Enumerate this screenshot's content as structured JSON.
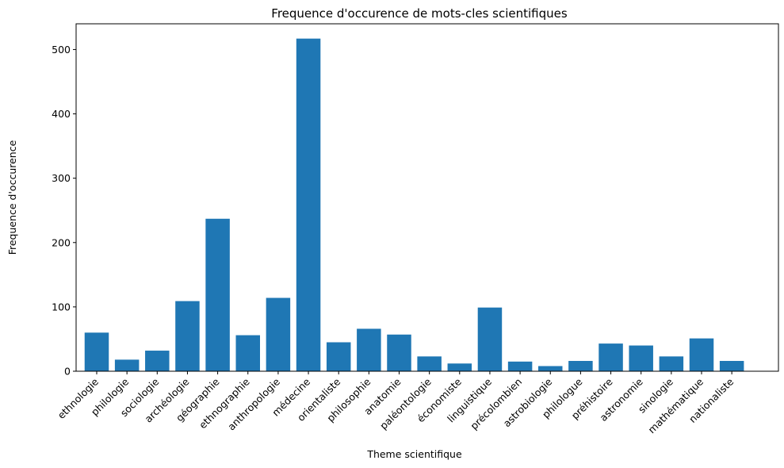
{
  "chart_data": {
    "type": "bar",
    "title": "Frequence d'occurence de mots-cles scientifiques",
    "xlabel": "Theme scientifique",
    "ylabel": "Frequence d'occurence",
    "ylim": [
      0,
      540
    ],
    "yticks": [
      0,
      100,
      200,
      300,
      400,
      500
    ],
    "grid": false,
    "bar_color": "#1f77b4",
    "categories": [
      "ethnologie",
      "philologie",
      "sociologie",
      "archéologie",
      "géographie",
      "ethnographie",
      "anthropologie",
      "médecine",
      "orientaliste",
      "philosophie",
      "anatomie",
      "paléontologie",
      "économiste",
      "linguistique",
      "précolombien",
      "astrobiologie",
      "philologue",
      "préhistoire",
      "astronomie",
      "sinologie",
      "mathématique",
      "nationaliste"
    ],
    "values": [
      60,
      18,
      32,
      109,
      237,
      56,
      114,
      517,
      45,
      66,
      57,
      23,
      12,
      99,
      15,
      8,
      16,
      43,
      40,
      23,
      51,
      16
    ]
  }
}
